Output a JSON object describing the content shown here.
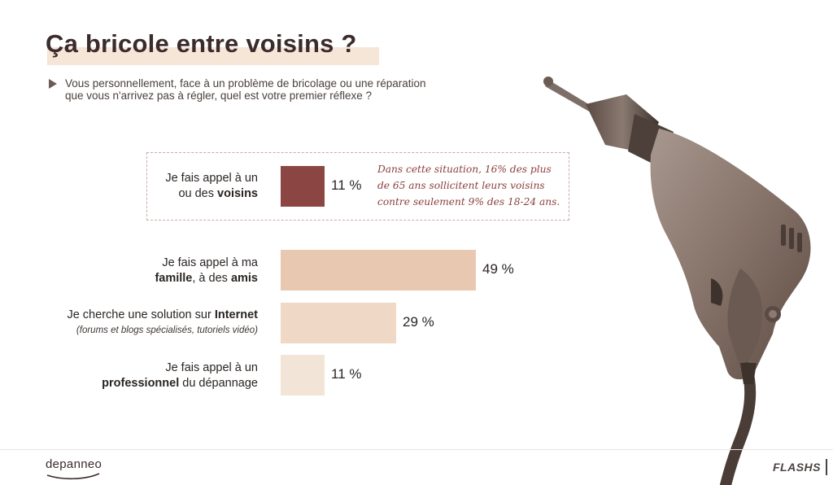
{
  "header": {
    "title": "Ça bricole entre voisins ?",
    "question_line1": "Vous personnellement, face à un problème de bricolage ou une réparation",
    "question_line2": "que vous n'arrivez pas à régler, quel est votre premier réflexe ?"
  },
  "chart_data": {
    "type": "bar",
    "orientation": "horizontal",
    "unit": "%",
    "xlim": [
      0,
      100
    ],
    "categories": [
      "Je fais appel à un ou des voisins",
      "Je fais appel à ma famille, à des amis",
      "Je cherche une solution sur Internet (forums et blogs spécialisés, tutoriels vidéo)",
      "Je fais appel à un professionnel du dépannage"
    ],
    "values": [
      11,
      49,
      29,
      11
    ],
    "value_labels": [
      "11 %",
      "49 %",
      "29 %",
      "11 %"
    ],
    "colors": [
      "#8b4643",
      "#e8c8b0",
      "#f0d8c6",
      "#f3e4d8"
    ],
    "label_parts": [
      {
        "l1": "Je fais appel à un",
        "l2_pre": "ou des ",
        "l2_bold": "voisins",
        "l2_post": ""
      },
      {
        "l1": "Je fais appel à ma",
        "l2_pre": "",
        "l2_bold": "famille",
        "l2_mid": ", à des ",
        "l2_bold2": "amis"
      },
      {
        "l1_pre": "Je cherche une solution sur ",
        "l1_bold": "Internet",
        "l2_italic": "(forums et blogs spécialisés, tutoriels vidéo)"
      },
      {
        "l1": "Je fais appel à un",
        "l2_bold": "professionnel",
        "l2_post": " du dépannage"
      }
    ],
    "annotation": {
      "line1": "Dans cette situation, 16% des plus",
      "line2": "de 65 ans sollicitent leurs voisins",
      "line3": "contre seulement 9% des 18-24 ans."
    }
  },
  "footer": {
    "logo": "depanneo",
    "brand": "FLASHS"
  }
}
